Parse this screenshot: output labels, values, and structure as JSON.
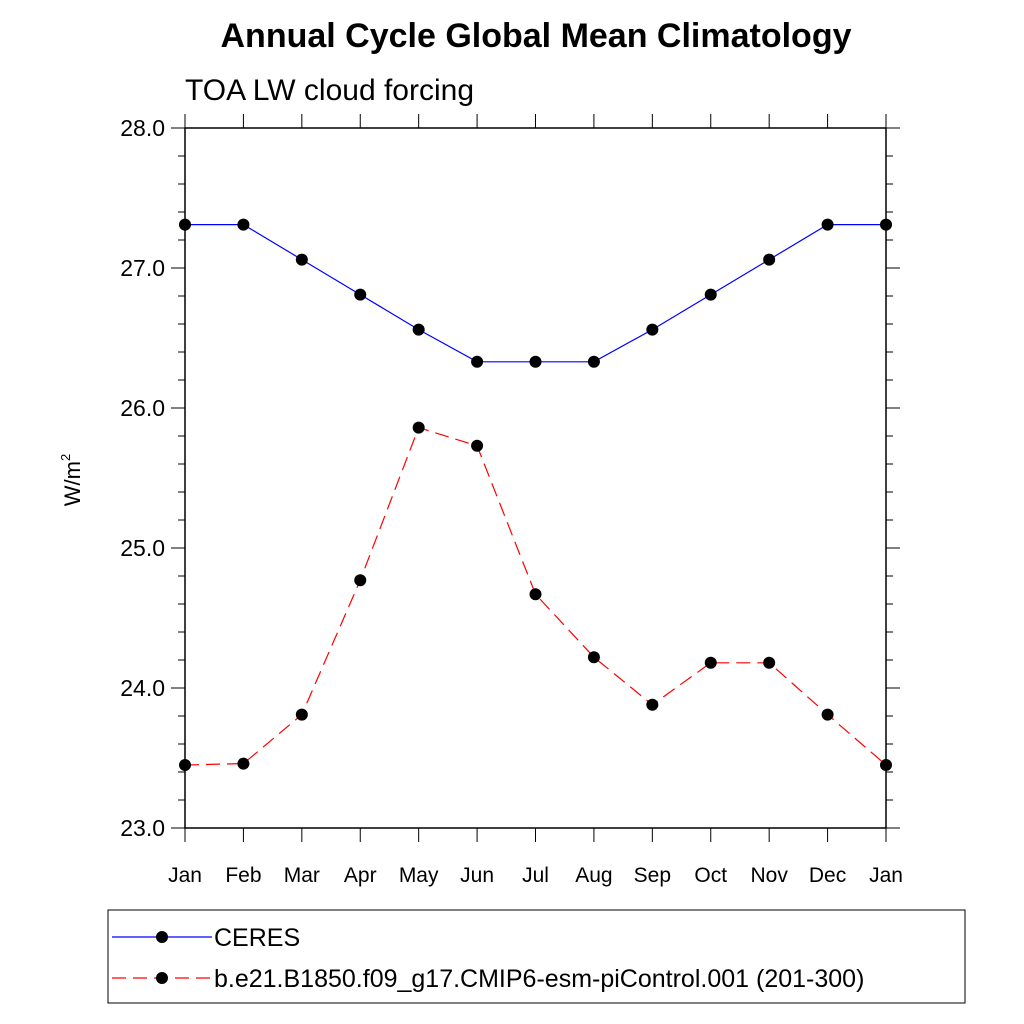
{
  "chart_data": {
    "type": "line",
    "title": "Annual Cycle Global Mean Climatology",
    "subtitle": "TOA LW cloud forcing",
    "ylabel_base": "W/m",
    "ylabel_sup": "2",
    "xlabel": "",
    "categories": [
      "Jan",
      "Feb",
      "Mar",
      "Apr",
      "May",
      "Jun",
      "Jul",
      "Aug",
      "Sep",
      "Oct",
      "Nov",
      "Dec",
      "Jan"
    ],
    "ylim": [
      23.0,
      28.0
    ],
    "yticks": [
      23.0,
      24.0,
      25.0,
      26.0,
      27.0,
      28.0
    ],
    "ytick_labels": [
      "23.0",
      "24.0",
      "25.0",
      "26.0",
      "27.0",
      "28.0"
    ],
    "grid": false,
    "legend_position": "bottom",
    "series": [
      {
        "name": "CERES",
        "color": "#0000ff",
        "dash": "solid",
        "marker": "filled-circle",
        "values": [
          27.31,
          27.31,
          27.06,
          26.81,
          26.56,
          26.33,
          26.33,
          26.33,
          26.56,
          26.81,
          27.06,
          27.31,
          27.31
        ]
      },
      {
        "name": "b.e21.B1850.f09_g17.CMIP6-esm-piControl.001 (201-300)",
        "color": "#ff0000",
        "dash": "dashed",
        "marker": "filled-circle",
        "values": [
          23.45,
          23.46,
          23.81,
          24.77,
          25.86,
          25.73,
          24.67,
          24.22,
          23.88,
          24.18,
          24.18,
          23.81,
          23.45
        ]
      }
    ]
  }
}
